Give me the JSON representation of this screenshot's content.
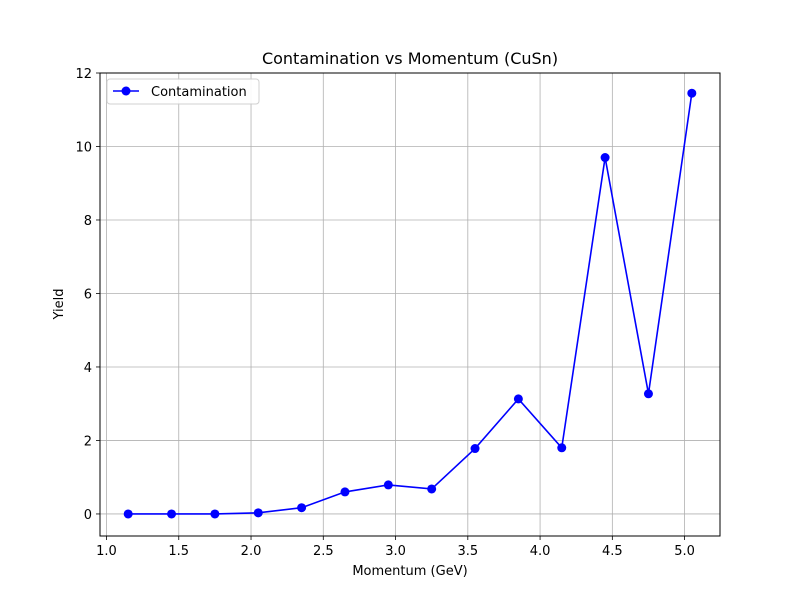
{
  "chart_data": {
    "type": "line",
    "title": "Contamination vs Momentum (CuSn)",
    "xlabel": "Momentum (GeV)",
    "ylabel": "Yield",
    "xlim": [
      0.955,
      5.245
    ],
    "ylim": [
      -0.6,
      12
    ],
    "x_ticks": [
      1.0,
      1.5,
      2.0,
      2.5,
      3.0,
      3.5,
      4.0,
      4.5,
      5.0
    ],
    "x_tick_labels": [
      "1.0",
      "1.5",
      "2.0",
      "2.5",
      "3.0",
      "3.5",
      "4.0",
      "4.5",
      "5.0"
    ],
    "y_ticks": [
      0,
      2,
      4,
      6,
      8,
      10,
      12
    ],
    "y_tick_labels": [
      "0",
      "2",
      "4",
      "6",
      "8",
      "10",
      "12"
    ],
    "grid": true,
    "legend_position": "top-left",
    "series": [
      {
        "name": "Contamination",
        "color": "#0000ff",
        "marker": "circle",
        "x": [
          1.15,
          1.45,
          1.75,
          2.05,
          2.35,
          2.65,
          2.95,
          3.25,
          3.55,
          3.85,
          4.15,
          4.45,
          4.75,
          5.05
        ],
        "y": [
          0.0,
          0.0,
          0.0,
          0.03,
          0.17,
          0.6,
          0.79,
          0.68,
          1.78,
          3.13,
          1.8,
          9.7,
          3.27,
          11.45
        ]
      }
    ]
  }
}
